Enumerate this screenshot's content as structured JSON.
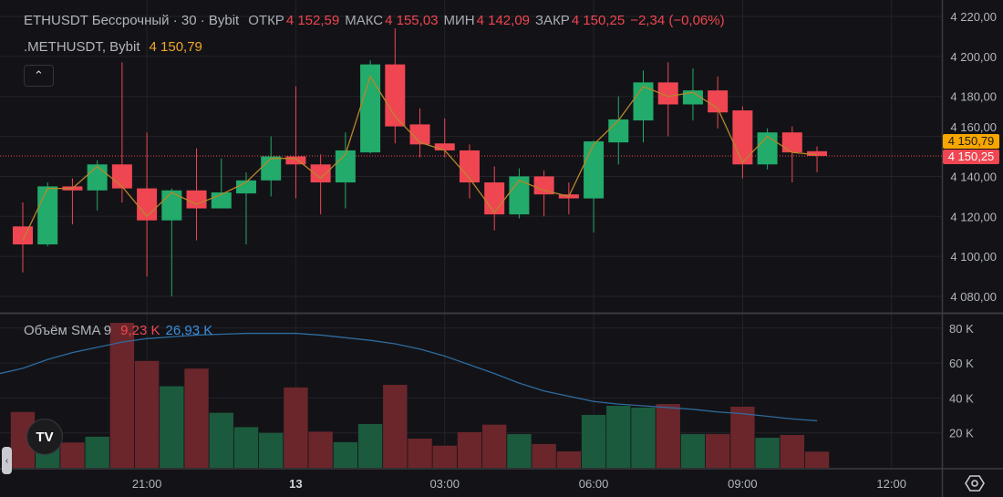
{
  "header": {
    "symbol": "ETHUSDT Бессрочный · 30 · Bybit",
    "open_label": "ОТКР",
    "open": "4 152,59",
    "high_label": "МАКС",
    "high": "4 155,03",
    "low_label": "МИН",
    "low": "4 142,09",
    "close_label": "ЗАКР",
    "close": "4 150,25",
    "change": "−2,34 (−0,06%)"
  },
  "overlay": {
    "symbol": ".METHUSDT, Bybit",
    "value": "4 150,79"
  },
  "volume_legend": {
    "label": "Объём SMA 9",
    "volume": "9,23 K",
    "sma": "26,93 K"
  },
  "icons": {
    "collapse": "chevron-up-icon",
    "logo": "tradingview-logo",
    "left_tab": "chevron-left-icon",
    "settings": "settings-hexagon-icon"
  },
  "logo_text": "TV",
  "badges": {
    "overlay_price": "4 150,79",
    "last_price": "4 150,25"
  },
  "colors": {
    "up": "#22ab6a",
    "down": "#ef4652",
    "vol_up": "#1b5a3d",
    "vol_down": "#6b262b",
    "sma": "#2f6b9e",
    "overlay": "#b8862a",
    "bg": "#131317"
  },
  "chart_data": {
    "type": "candlestick",
    "interval": "30",
    "price_axis": {
      "ticks": [
        "4 220,00",
        "4 200,00",
        "4 180,00",
        "4 160,00",
        "4 140,00",
        "4 120,00",
        "4 100,00",
        "4 080,00"
      ],
      "tick_values": [
        4220,
        4200,
        4180,
        4160,
        4140,
        4120,
        4100,
        4080
      ],
      "range": [
        4074,
        4228
      ]
    },
    "volume_axis": {
      "ticks": [
        "80 K",
        "60 K",
        "40 K",
        "20 K"
      ],
      "tick_values": [
        80,
        60,
        40,
        20
      ],
      "range": [
        0,
        80
      ]
    },
    "time_axis": {
      "labels": [
        "21:00",
        "13",
        "03:00",
        "06:00",
        "09:00",
        "12:00"
      ],
      "label_index": [
        5,
        11,
        17,
        23,
        29,
        35
      ]
    },
    "last_price": 4150.25,
    "overlay_last": 4150.79,
    "candles": [
      [
        4115,
        4127,
        4092,
        4106
      ],
      [
        4106,
        4137,
        4105,
        4135
      ],
      [
        4135,
        4139,
        4116,
        4133
      ],
      [
        4133,
        4148,
        4123,
        4146
      ],
      [
        4146,
        4197,
        4127,
        4134
      ],
      [
        4134,
        4162,
        4090,
        4118
      ],
      [
        4118,
        4134,
        4080,
        4133
      ],
      [
        4133,
        4154,
        4108,
        4124
      ],
      [
        4124,
        4149,
        4124,
        4132
      ],
      [
        4131.5,
        4142,
        4106,
        4138
      ],
      [
        4138,
        4160,
        4130,
        4150
      ],
      [
        4150,
        4185,
        4129,
        4146
      ],
      [
        4146,
        4151,
        4121,
        4137
      ],
      [
        4137,
        4162,
        4124,
        4153
      ],
      [
        4152,
        4198,
        4151.5,
        4196
      ],
      [
        4196,
        4214,
        4156.5,
        4165
      ],
      [
        4166,
        4174,
        4149.5,
        4156
      ],
      [
        4156.5,
        4169,
        4149.5,
        4153
      ],
      [
        4153,
        4156,
        4129,
        4137
      ],
      [
        4137,
        4145,
        4113,
        4121
      ],
      [
        4121,
        4144,
        4119,
        4140
      ],
      [
        4140,
        4143,
        4120,
        4131
      ],
      [
        4131,
        4137,
        4121,
        4129
      ],
      [
        4129,
        4158,
        4112,
        4157.5
      ],
      [
        4157,
        4180,
        4146,
        4168.5
      ],
      [
        4168,
        4193,
        4157,
        4187
      ],
      [
        4187,
        4197,
        4160,
        4176
      ],
      [
        4176,
        4194,
        4168,
        4183
      ],
      [
        4183,
        4190,
        4164,
        4172
      ],
      [
        4173,
        4175,
        4139,
        4146
      ],
      [
        4146,
        4164,
        4143.5,
        4162
      ],
      [
        4162,
        4165,
        4137,
        4152
      ],
      [
        4152.59,
        4155.03,
        4142.09,
        4150.25
      ]
    ],
    "overlay_line": [
      4108,
      4134,
      4134,
      4145,
      4135,
      4120,
      4132,
      4126,
      4131,
      4137,
      4149,
      4149,
      4139,
      4151,
      4190,
      4170,
      4157,
      4153,
      4139,
      4122,
      4138,
      4133,
      4130,
      4156,
      4168,
      4185,
      4180,
      4182,
      4174,
      4147,
      4160,
      4152,
      4150.79
    ],
    "volume_k": [
      32,
      12,
      14.5,
      17.8,
      83,
      61.2,
      46.7,
      56.8,
      31.5,
      23.3,
      20,
      46,
      20.7,
      14.7,
      25.1,
      47.5,
      16.7,
      12.7,
      20.4,
      24.7,
      19.3,
      13.6,
      9.4,
      30.3,
      35.5,
      34.5,
      36.5,
      19.3,
      19.3,
      35,
      17.2,
      18.8,
      9.23
    ],
    "volume_sma_k": [
      57,
      62,
      66,
      69,
      72,
      74,
      75,
      76,
      76.5,
      77,
      77,
      77,
      76,
      74.5,
      73,
      71,
      68,
      64,
      59,
      54,
      48.5,
      44,
      41,
      38,
      36.5,
      35.5,
      34.5,
      33.5,
      32,
      31,
      29.5,
      28,
      26.93
    ]
  }
}
